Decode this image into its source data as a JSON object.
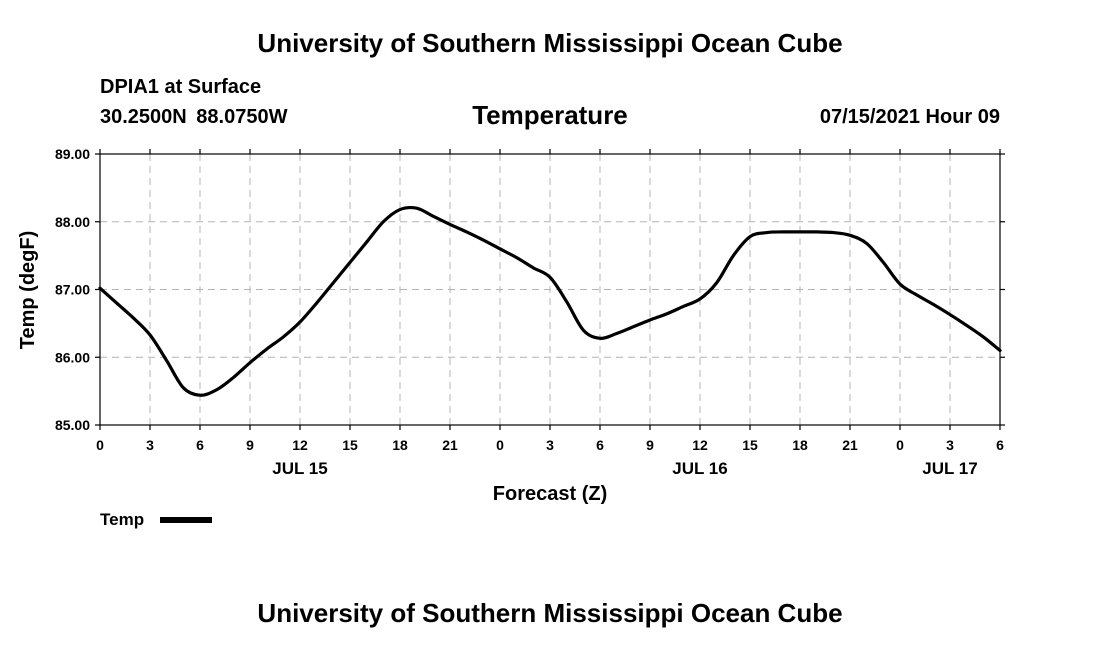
{
  "header": {
    "title": "University of Southern Mississippi Ocean Cube",
    "station": "DPIA1 at Surface",
    "coords": "30.2500N  88.0750W",
    "variable": "Temperature",
    "issued": "07/15/2021 Hour 09"
  },
  "footer": {
    "title": "University of Southern Mississippi Ocean Cube"
  },
  "legend": {
    "label": "Temp",
    "color": "#000000"
  },
  "chart_data": {
    "type": "line",
    "title": "Temperature",
    "xlabel": "Forecast (Z)",
    "ylabel": "Temp (degF)",
    "ylim": [
      85.0,
      89.0
    ],
    "yticks": [
      85.0,
      86.0,
      87.0,
      88.0,
      89.0
    ],
    "ytick_labels": [
      "85.00",
      "86.00",
      "87.00",
      "88.00",
      "89.00"
    ],
    "xlim_hours": [
      0,
      54
    ],
    "xtick_hours": [
      0,
      3,
      6,
      9,
      12,
      15,
      18,
      21,
      24,
      27,
      30,
      33,
      36,
      39,
      42,
      45,
      48,
      51,
      54
    ],
    "xtick_labels": [
      "0",
      "3",
      "6",
      "9",
      "12",
      "15",
      "18",
      "21",
      "0",
      "3",
      "6",
      "9",
      "12",
      "15",
      "18",
      "21",
      "0",
      "3",
      "6"
    ],
    "date_labels": [
      {
        "hour": 12,
        "text": "JUL 15"
      },
      {
        "hour": 36,
        "text": "JUL 16"
      },
      {
        "hour": 51,
        "text": "JUL 17"
      }
    ],
    "grid": true,
    "series": [
      {
        "name": "Temp",
        "color": "#000000",
        "x_hours": [
          0,
          1,
          2,
          3,
          4,
          5,
          6,
          7,
          8,
          9,
          10,
          11,
          12,
          13,
          14,
          15,
          16,
          17,
          18,
          19,
          20,
          21,
          22,
          23,
          24,
          25,
          26,
          27,
          28,
          29,
          30,
          31,
          32,
          33,
          34,
          35,
          36,
          37,
          38,
          39,
          40,
          41,
          42,
          43,
          44,
          45,
          46,
          47,
          48,
          49,
          50,
          51,
          52,
          53,
          54
        ],
        "values": [
          87.02,
          86.8,
          86.58,
          86.33,
          85.95,
          85.55,
          85.44,
          85.52,
          85.7,
          85.92,
          86.12,
          86.3,
          86.52,
          86.8,
          87.1,
          87.4,
          87.7,
          88.0,
          88.18,
          88.2,
          88.08,
          87.96,
          87.85,
          87.73,
          87.6,
          87.47,
          87.32,
          87.18,
          86.82,
          86.4,
          86.28,
          86.35,
          86.45,
          86.55,
          86.64,
          86.75,
          86.86,
          87.1,
          87.5,
          87.78,
          87.84,
          87.85,
          87.85,
          87.85,
          87.84,
          87.8,
          87.68,
          87.4,
          87.08,
          86.92,
          86.78,
          86.63,
          86.47,
          86.3,
          86.1
        ]
      }
    ]
  }
}
